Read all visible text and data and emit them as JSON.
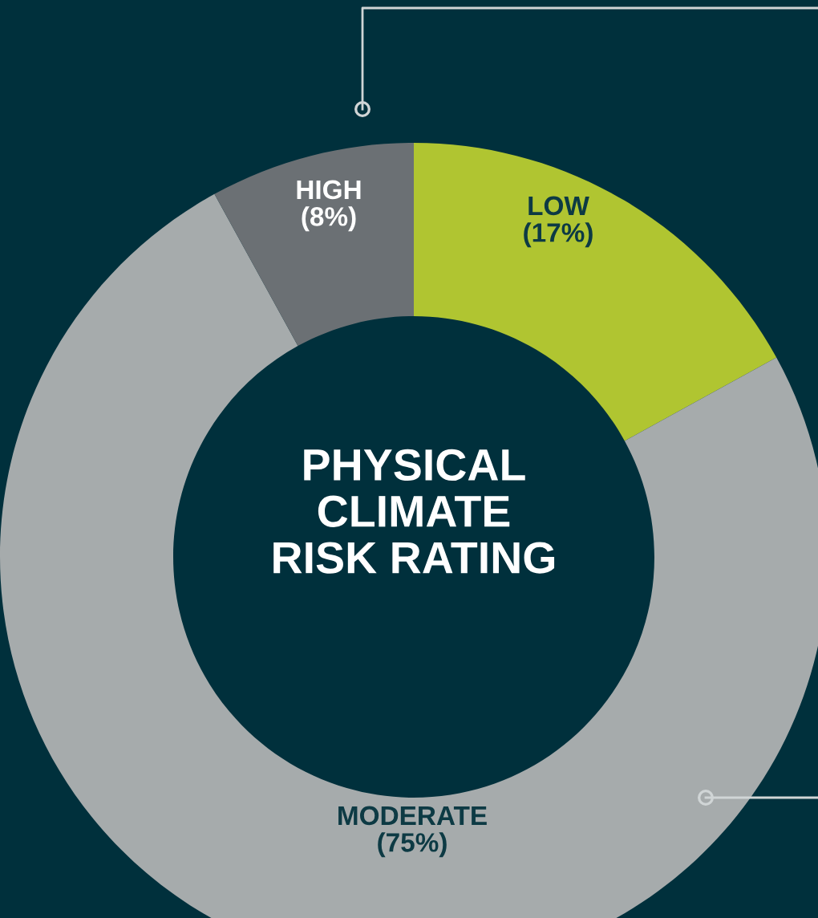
{
  "chart_data": {
    "type": "donut",
    "title": "PHYSICAL\nCLIMATE\nRISK RATING",
    "categories": [
      "LOW",
      "MODERATE",
      "HIGH"
    ],
    "values": [
      17,
      75,
      8
    ],
    "value_labels": [
      "(17%)",
      "(75%)",
      "(8%)"
    ],
    "colors": [
      "#b0c531",
      "#a6abac",
      "#6b7074"
    ]
  }
}
